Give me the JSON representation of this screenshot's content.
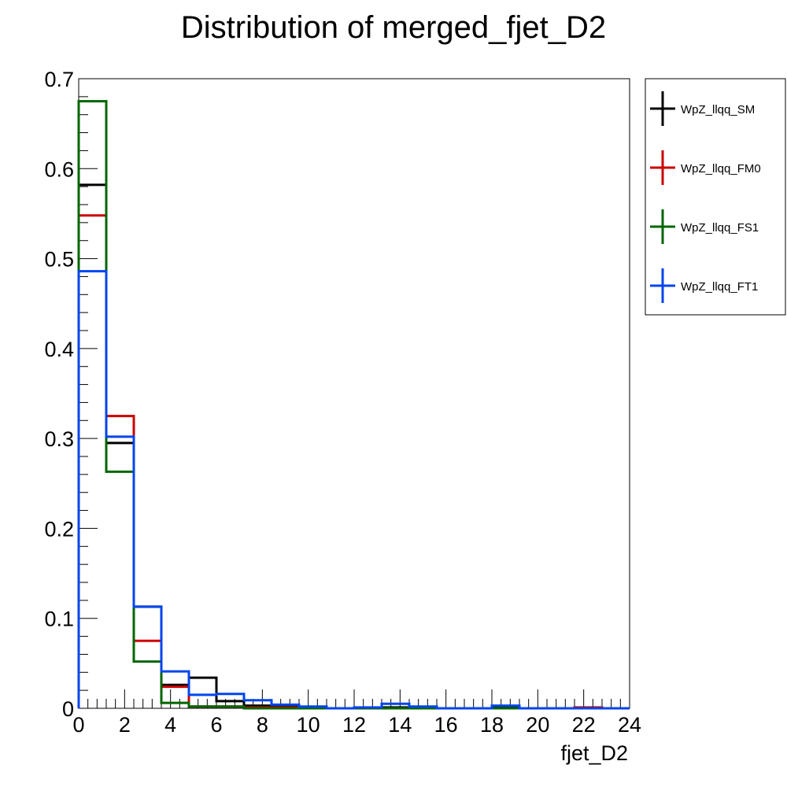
{
  "chart_data": {
    "type": "histogram-step",
    "title": "Distribution of merged_fjet_D2",
    "xlabel": "fjet_D2",
    "ylabel": "",
    "xlim": [
      0,
      24
    ],
    "ylim": [
      0,
      0.7
    ],
    "x_ticks": [
      0,
      2,
      4,
      6,
      8,
      10,
      12,
      14,
      16,
      18,
      20,
      22,
      24
    ],
    "x_tick_labels": [
      "0",
      "2",
      "4",
      "6",
      "8",
      "10",
      "12",
      "14",
      "16",
      "18",
      "20",
      "22",
      "24"
    ],
    "y_ticks": [
      0,
      0.1,
      0.2,
      0.3,
      0.4,
      0.5,
      0.6,
      0.7
    ],
    "y_tick_labels": [
      "0",
      "0.1",
      "0.2",
      "0.3",
      "0.4",
      "0.5",
      "0.6",
      "0.7"
    ],
    "bin_edges": [
      0,
      1.2,
      2.4,
      3.6,
      4.8,
      6.0,
      7.2,
      8.4,
      9.6,
      10.8,
      12.0,
      13.2,
      14.4,
      15.6,
      16.8,
      18.0,
      19.2,
      20.4,
      21.6,
      22.8,
      24.0
    ],
    "legend": {
      "placement": "right-outside"
    },
    "series": [
      {
        "name": "WpZ_llqq_SM",
        "color": "#000000",
        "values": [
          0.582,
          0.295,
          0.113,
          0.026,
          0.034,
          0.008,
          0.003,
          0.003,
          0.001,
          0.0,
          0.0,
          0.001,
          0.0,
          0.0,
          0.0,
          0.001,
          0.0,
          0.0,
          0.0,
          0.0
        ]
      },
      {
        "name": "WpZ_llqq_FM0",
        "color": "#cc0000",
        "values": [
          0.548,
          0.325,
          0.075,
          0.024,
          0.002,
          0.002,
          0.001,
          0.001,
          0.0,
          0.0,
          0.0,
          0.0,
          0.0,
          0.0,
          0.0,
          0.0,
          0.0,
          0.0,
          0.001,
          0.0
        ]
      },
      {
        "name": "WpZ_llqq_FS1",
        "color": "#006600",
        "values": [
          0.675,
          0.263,
          0.052,
          0.006,
          0.002,
          0.002,
          0.0,
          0.0,
          0.0,
          0.0,
          0.0,
          0.0,
          0.0,
          0.0,
          0.0,
          0.0,
          0.0,
          0.0,
          0.0,
          0.0
        ]
      },
      {
        "name": "WpZ_llqq_FT1",
        "color": "#0044ee",
        "values": [
          0.486,
          0.302,
          0.113,
          0.041,
          0.015,
          0.016,
          0.009,
          0.004,
          0.002,
          0.0,
          0.001,
          0.005,
          0.002,
          0.0,
          0.0,
          0.003,
          0.0,
          0.0,
          0.0,
          0.0
        ]
      }
    ]
  }
}
